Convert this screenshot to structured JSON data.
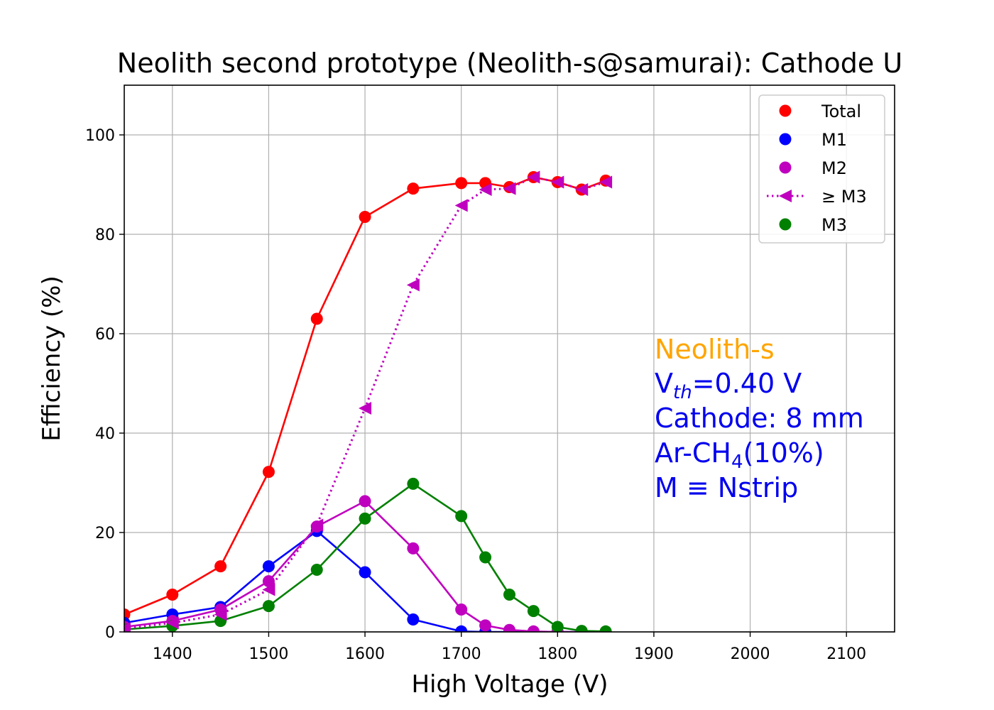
{
  "chart_data": {
    "type": "line",
    "title": "Neolith second prototype (Neolith-s@samurai): Cathode U",
    "xlabel": "High Voltage (V)",
    "ylabel": "Efficiency (%)",
    "xlim": [
      1350,
      2150
    ],
    "ylim": [
      0,
      110
    ],
    "xticks": [
      1400,
      1500,
      1600,
      1700,
      1800,
      1900,
      2000,
      2100
    ],
    "yticks": [
      0,
      20,
      40,
      60,
      80,
      100
    ],
    "xtick_labels": [
      "1400",
      "1500",
      "1600",
      "1700",
      "1800",
      "1900",
      "2000",
      "2100"
    ],
    "ytick_labels": [
      "0",
      "20",
      "40",
      "60",
      "80",
      "100"
    ],
    "grid": true,
    "legend_position": "top-right",
    "series": [
      {
        "name": "Total",
        "color": "#ff0000",
        "marker": "circle",
        "linestyle": "solid",
        "x": [
          1350,
          1400,
          1450,
          1500,
          1550,
          1600,
          1650,
          1700,
          1725,
          1750,
          1775,
          1800,
          1825,
          1850
        ],
        "y": [
          3.5,
          7.5,
          13.2,
          32.2,
          63.0,
          83.5,
          89.2,
          90.3,
          90.3,
          89.5,
          91.5,
          90.5,
          89.0,
          90.8
        ]
      },
      {
        "name": "M1",
        "color": "#0000ff",
        "marker": "circle",
        "linestyle": "solid",
        "x": [
          1350,
          1400,
          1450,
          1500,
          1550,
          1600,
          1650,
          1700,
          1725,
          1750,
          1775,
          1800,
          1825,
          1850
        ],
        "y": [
          1.8,
          3.5,
          5.0,
          13.2,
          20.3,
          12.0,
          2.5,
          0.1,
          0.0,
          0.0,
          0.0,
          0.0,
          0.0,
          0.0
        ]
      },
      {
        "name": "M2",
        "color": "#bf00bf",
        "marker": "circle",
        "linestyle": "solid",
        "x": [
          1350,
          1400,
          1450,
          1500,
          1550,
          1600,
          1650,
          1700,
          1725,
          1750,
          1775,
          1800,
          1825,
          1850
        ],
        "y": [
          1.0,
          2.2,
          4.5,
          10.2,
          21.2,
          26.3,
          16.8,
          4.5,
          1.3,
          0.4,
          0.1,
          0.0,
          0.0,
          0.0
        ]
      },
      {
        "name": "≥ M3",
        "color": "#bf00bf",
        "marker": "triangle-left",
        "linestyle": "dotted",
        "x": [
          1350,
          1400,
          1450,
          1500,
          1550,
          1600,
          1650,
          1700,
          1725,
          1750,
          1775,
          1800,
          1825,
          1850
        ],
        "y": [
          0.7,
          1.8,
          3.5,
          8.5,
          21.5,
          45.0,
          69.8,
          85.8,
          89.0,
          89.2,
          91.5,
          90.5,
          89.0,
          90.5
        ]
      },
      {
        "name": "M3",
        "color": "#008000",
        "marker": "circle",
        "linestyle": "solid",
        "x": [
          1350,
          1400,
          1450,
          1500,
          1550,
          1600,
          1650,
          1700,
          1725,
          1750,
          1775,
          1800,
          1825,
          1850
        ],
        "y": [
          0.5,
          1.2,
          2.2,
          5.2,
          12.5,
          22.8,
          29.8,
          23.3,
          15.0,
          7.5,
          4.2,
          1.0,
          0.2,
          0.1
        ]
      }
    ],
    "legend_order": [
      "Total",
      "M1",
      "M2",
      "≥ M3",
      "M3"
    ],
    "legend_styles": [
      {
        "color": "#ff0000",
        "marker": "circle",
        "line": false
      },
      {
        "color": "#0000ff",
        "marker": "circle",
        "line": false
      },
      {
        "color": "#bf00bf",
        "marker": "circle",
        "line": false
      },
      {
        "color": "#bf00bf",
        "marker": "triangle-left",
        "line": true
      },
      {
        "color": "#008000",
        "marker": "circle",
        "line": false
      }
    ],
    "annotation": {
      "line1": "Neolith-s",
      "line1_color": "#ffa500",
      "line2_prefix": "V",
      "line2_sub": "th",
      "line2_suffix": "=0.40 V",
      "line3": "Cathode: 8 mm",
      "line4_prefix": "Ar-CH",
      "line4_sub": "4",
      "line4_suffix": "(10%)",
      "line5": "M ≡ Nstrip",
      "text_color": "#0000ee"
    }
  }
}
